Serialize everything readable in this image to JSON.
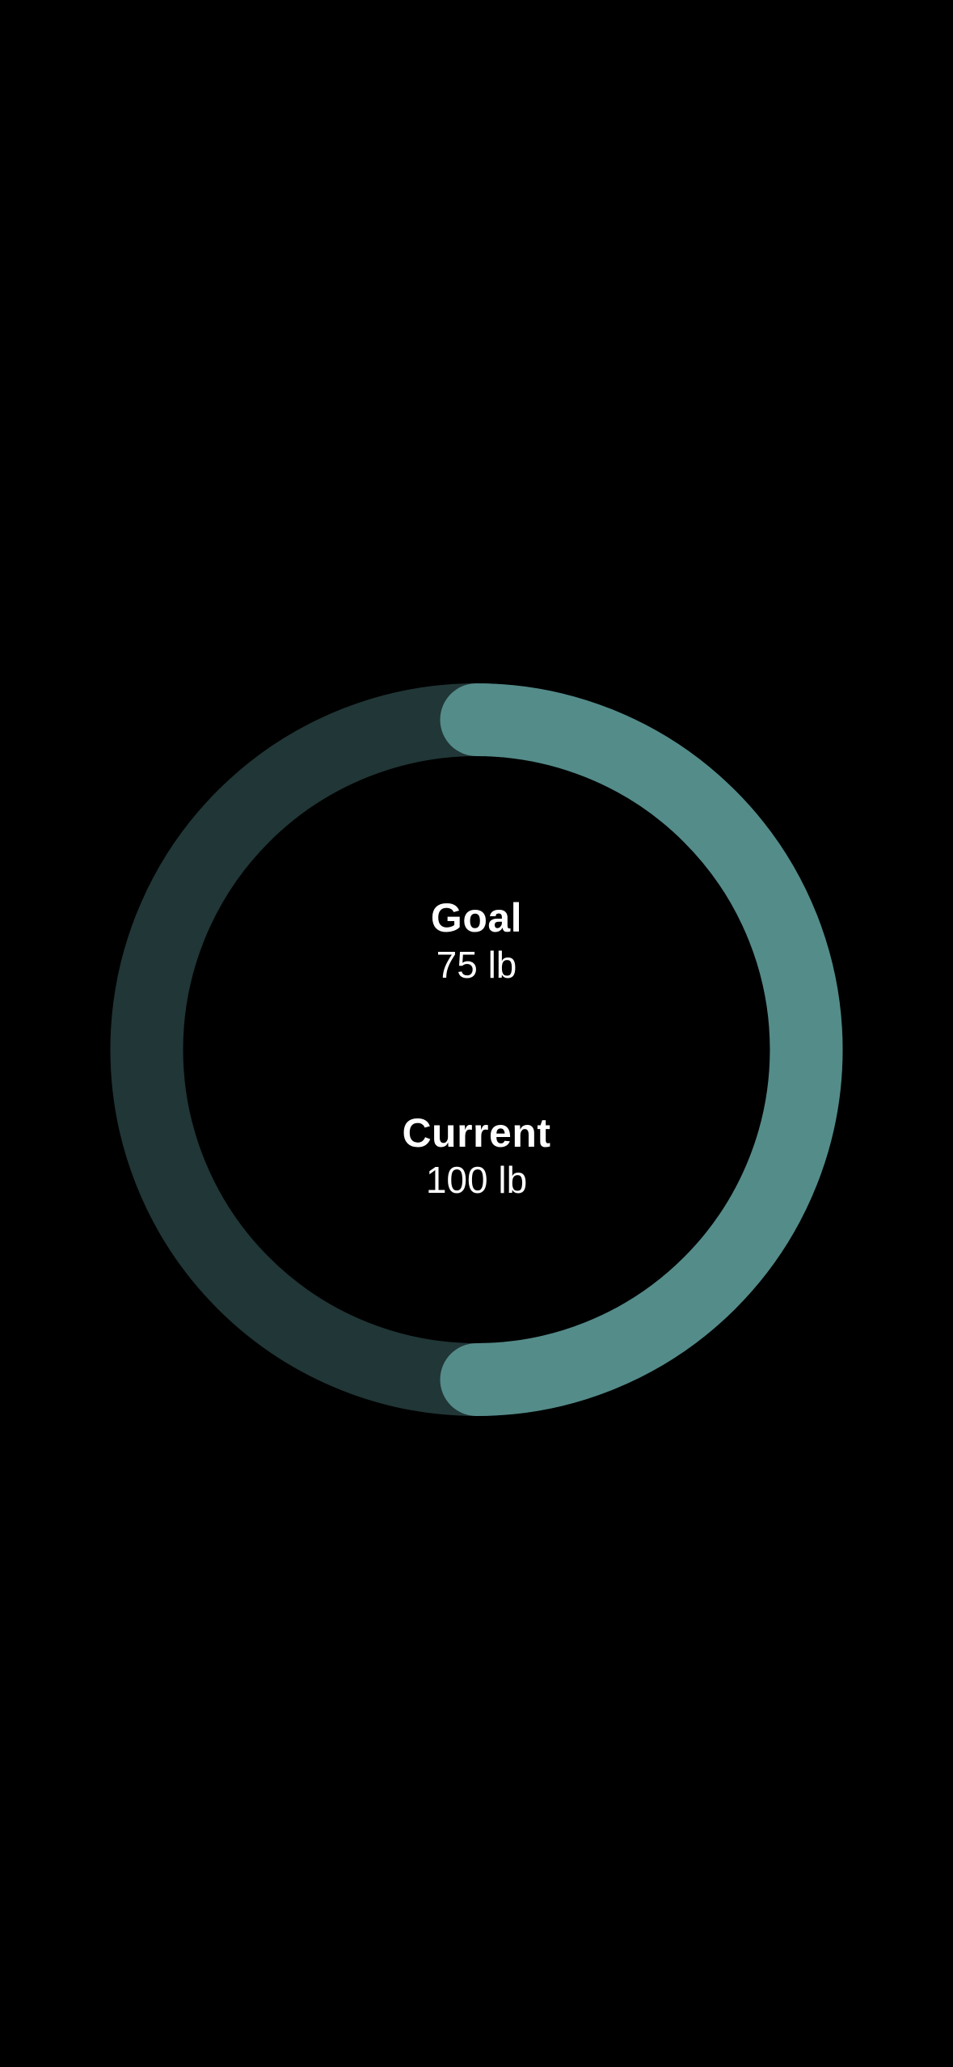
{
  "progress": {
    "fraction": 0.5,
    "track_color": "#213636",
    "fill_color": "#548C8A",
    "background_color": "#000000"
  },
  "goal": {
    "label": "Goal",
    "value": "75 lb"
  },
  "current": {
    "label": "Current",
    "value": "100 lb"
  }
}
